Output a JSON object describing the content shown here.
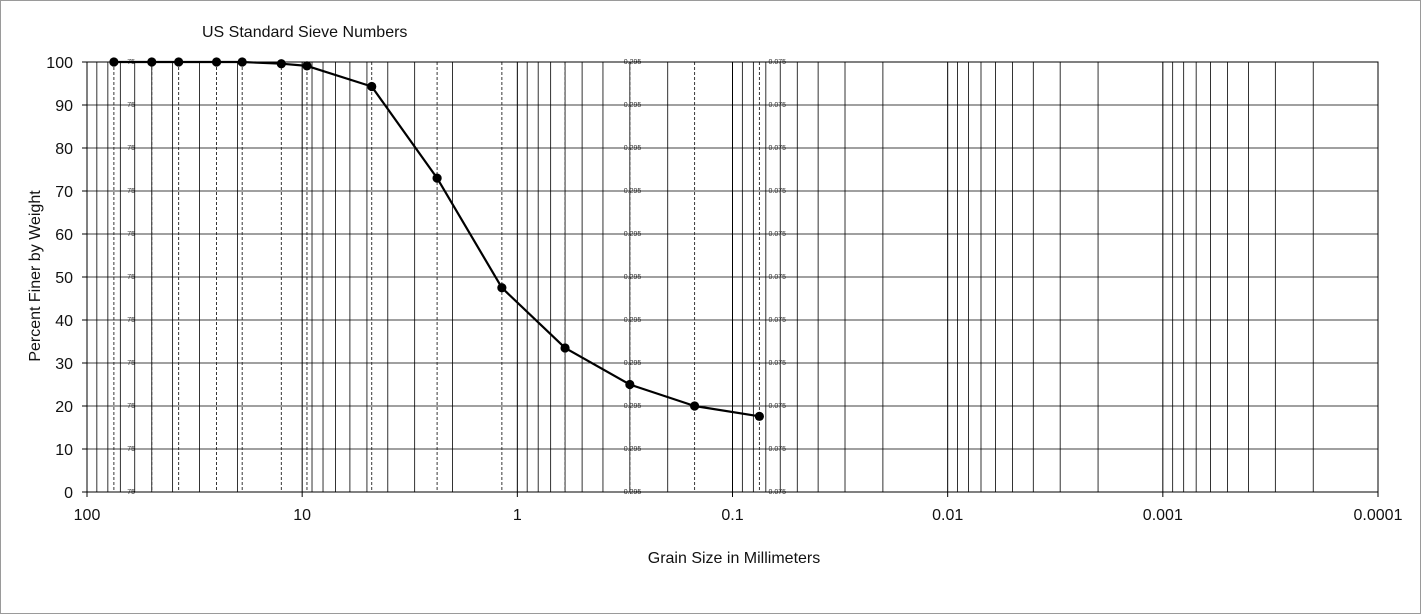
{
  "chart_data": {
    "type": "line",
    "top_label": "US Standard Sieve  Numbers",
    "xlabel": "Grain Size in Millimeters",
    "ylabel": "Percent Finer by Weight",
    "x_scale": "log",
    "x_reversed": true,
    "xlim": [
      100,
      0.0001
    ],
    "ylim": [
      0,
      100
    ],
    "x_ticks": [
      100,
      10,
      1,
      0.1,
      0.01,
      0.001,
      0.0001
    ],
    "x_tick_labels": [
      "100",
      "10",
      "1",
      "0.1",
      "0.01",
      "0.001",
      "0.0001"
    ],
    "y_ticks": [
      0,
      10,
      20,
      30,
      40,
      50,
      60,
      70,
      80,
      90,
      100
    ],
    "y_tick_labels": [
      "0",
      "10",
      "20",
      "30",
      "40",
      "50",
      "60",
      "70",
      "80",
      "90",
      "100"
    ],
    "grid": true,
    "sieve_sizes": [
      75,
      50,
      37.5,
      25,
      19,
      12.5,
      9.5,
      4.75,
      2.36,
      1.18,
      0.6,
      0.3,
      0.15,
      0.075
    ],
    "sieve_labels": [
      {
        "text": "75",
        "x": 65
      },
      {
        "text": "0.295",
        "x": 0.32
      },
      {
        "text": "0.075",
        "x": 0.068
      }
    ],
    "sieve_label_y_values": [
      0,
      10,
      20,
      30,
      40,
      50,
      60,
      70,
      80,
      90,
      100
    ],
    "series": [
      {
        "x": [
          75,
          50,
          37.5,
          25,
          19,
          12.5,
          9.5,
          4.75,
          2.36,
          1.18,
          0.6,
          0.3,
          0.15,
          0.075
        ],
        "y": [
          100,
          100,
          100,
          100,
          100,
          99.6,
          99.1,
          94.3,
          73,
          47.5,
          33.5,
          25,
          20,
          17.6
        ]
      }
    ]
  }
}
